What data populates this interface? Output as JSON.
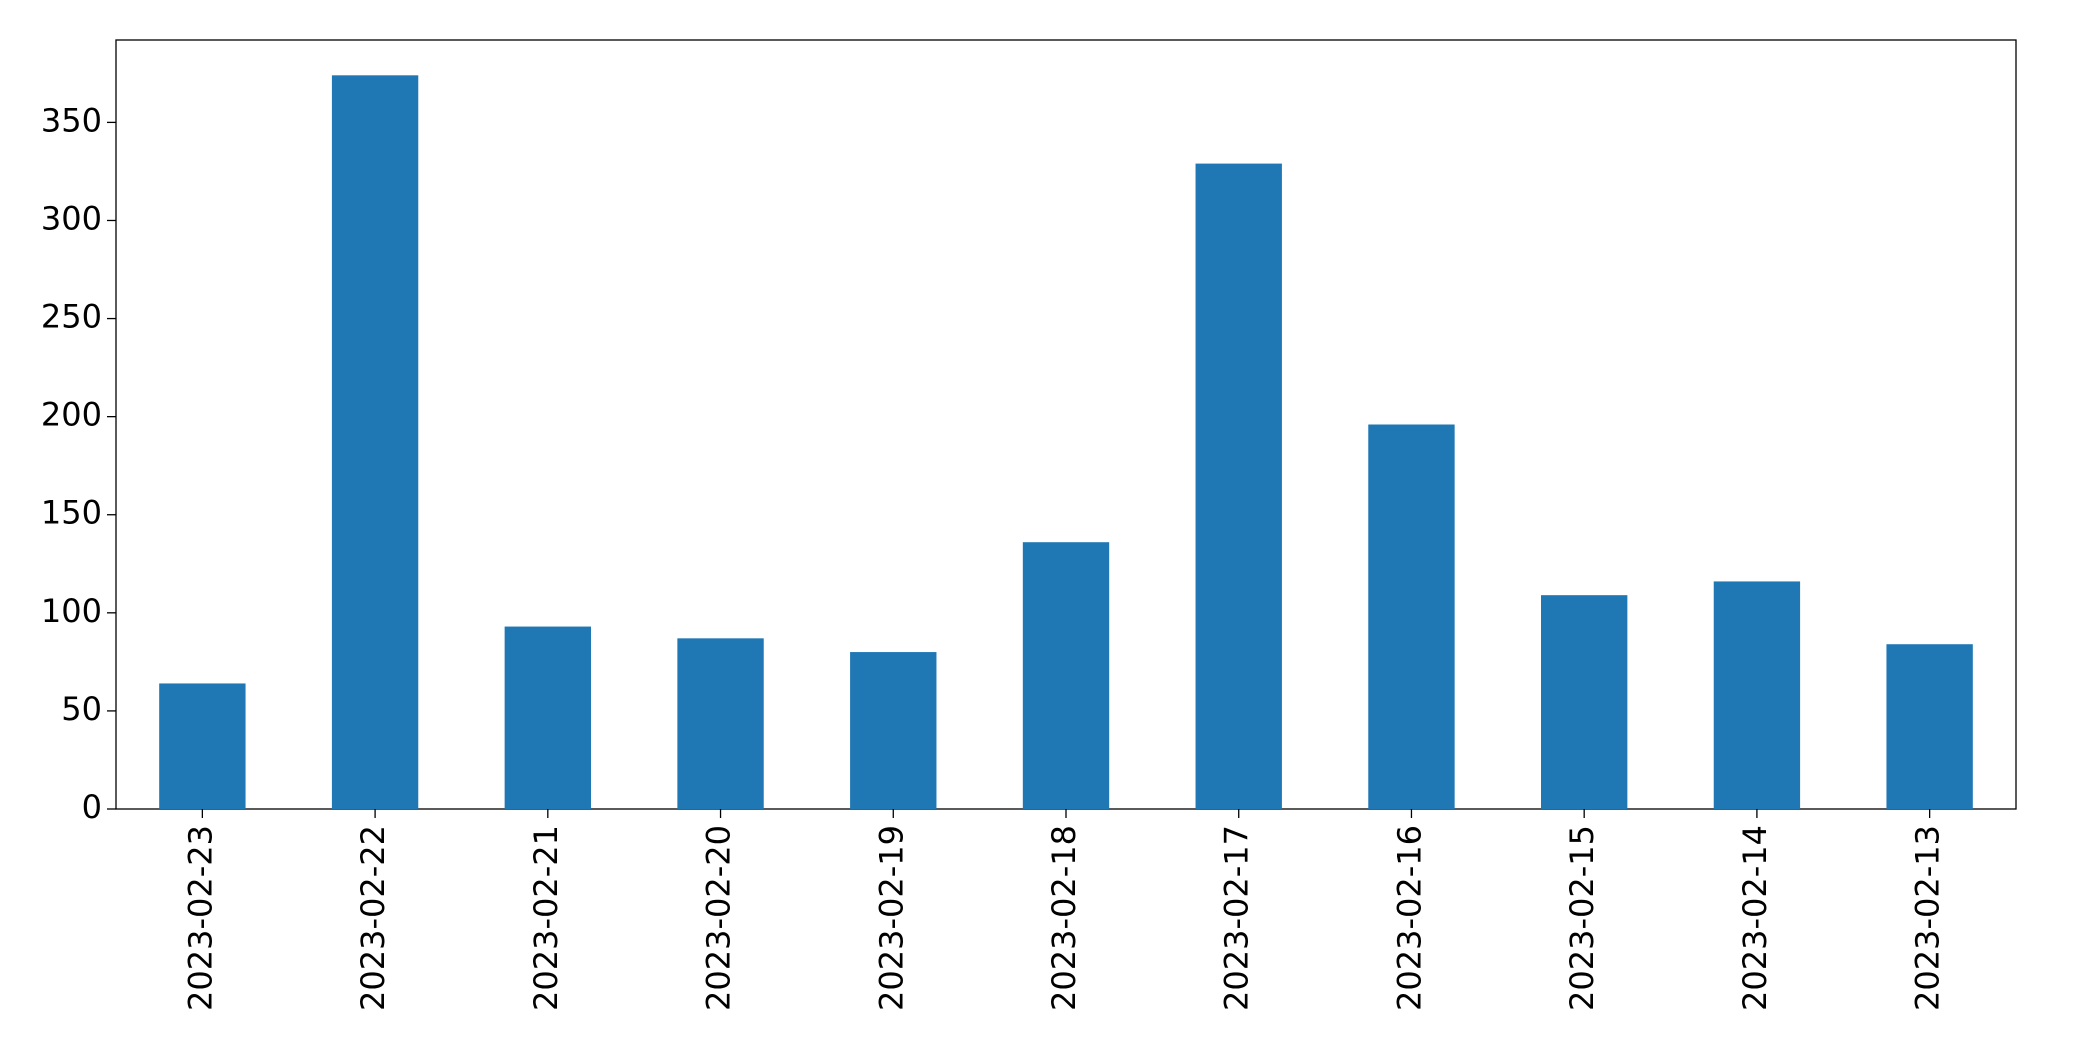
{
  "chart_data": {
    "type": "bar",
    "categories": [
      "2023-02-23",
      "2023-02-22",
      "2023-02-21",
      "2023-02-20",
      "2023-02-19",
      "2023-02-18",
      "2023-02-17",
      "2023-02-16",
      "2023-02-15",
      "2023-02-14",
      "2023-02-13"
    ],
    "values": [
      64,
      374,
      93,
      87,
      80,
      136,
      329,
      196,
      109,
      116,
      84
    ],
    "color": "#1f77b4",
    "ylim": [
      0,
      392
    ],
    "yticks": [
      0,
      50,
      100,
      150,
      200,
      250,
      300,
      350
    ],
    "grid": false
  }
}
